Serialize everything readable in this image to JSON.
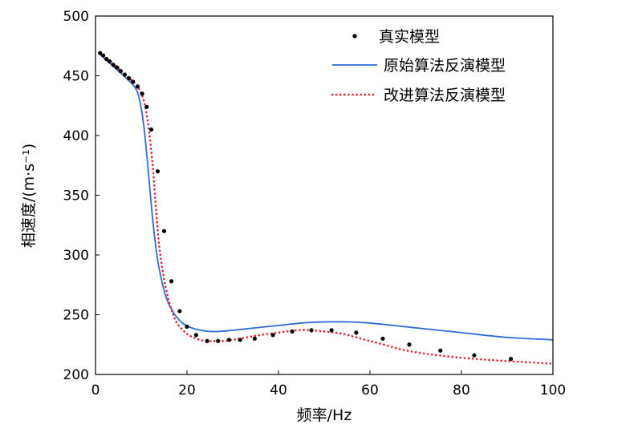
{
  "chart_data": {
    "type": "line",
    "xlabel": "频率/Hz",
    "ylabel": "相速度/(m·s⁻¹)",
    "xlim": [
      0,
      100
    ],
    "ylim": [
      200,
      500
    ],
    "x_ticks": [
      "0",
      "20",
      "40",
      "60",
      "80",
      "100"
    ],
    "y_ticks": [
      "200",
      "250",
      "300",
      "350",
      "400",
      "450",
      "500"
    ],
    "grid": false,
    "legend_position": "top-right",
    "legend": [
      "真实模型",
      "原始算法反演模型",
      "改进算法反演模型"
    ],
    "series": [
      {
        "name": "真实模型",
        "style": "scatter",
        "color": "#000000",
        "x": [
          1,
          1.7,
          2.4,
          3.1,
          3.9,
          4.7,
          5.5,
          6.4,
          7.3,
          8.2,
          9.2,
          10.2,
          11.2,
          12.2,
          13.6,
          15,
          16.6,
          18.4,
          20,
          22,
          24.4,
          26.8,
          29.2,
          31.6,
          34.8,
          38.8,
          43,
          47.2,
          51.6,
          57,
          62.8,
          68.6,
          75.4,
          82.8,
          90.8
        ],
        "y": [
          469,
          467,
          464,
          462,
          459,
          457,
          454,
          451,
          448,
          445,
          441,
          435,
          424,
          405,
          370,
          320,
          278,
          253,
          240,
          233,
          228,
          228,
          229,
          229,
          230,
          233,
          236,
          237,
          237,
          235,
          230,
          225,
          220,
          216,
          213
        ]
      },
      {
        "name": "原始算法反演模型",
        "style": "solid",
        "color": "#2E6BD6",
        "x": [
          1,
          3,
          5,
          7,
          8.5,
          9.5,
          10.5,
          11.5,
          12.5,
          13.5,
          14.5,
          15.5,
          17,
          19,
          21,
          23,
          25,
          27,
          30,
          35,
          40,
          45,
          50,
          55,
          60,
          70,
          80,
          90,
          100
        ],
        "y": [
          468,
          461,
          454,
          447,
          441,
          432,
          410,
          372,
          330,
          298,
          278,
          264,
          252,
          243,
          239,
          237,
          236,
          236,
          237,
          239,
          241,
          243,
          244,
          244,
          243,
          239,
          235,
          231,
          229
        ]
      },
      {
        "name": "改进算法反演模型",
        "style": "dotted",
        "color": "#E81C2E",
        "x": [
          1,
          3,
          5,
          7,
          9,
          10.5,
          11.5,
          12.5,
          13.2,
          14,
          15,
          16,
          17,
          18,
          20,
          22,
          24,
          26,
          28,
          30,
          33,
          36,
          40,
          44,
          47,
          50,
          54,
          58,
          62,
          68,
          75,
          83,
          91,
          100
        ],
        "y": [
          469,
          463,
          456,
          449,
          442,
          430,
          410,
          375,
          340,
          305,
          280,
          262,
          250,
          242,
          234,
          230,
          228,
          228,
          228,
          229,
          231,
          233,
          235,
          237,
          237,
          236,
          234,
          230,
          226,
          220,
          216,
          213,
          211,
          209
        ]
      }
    ]
  }
}
